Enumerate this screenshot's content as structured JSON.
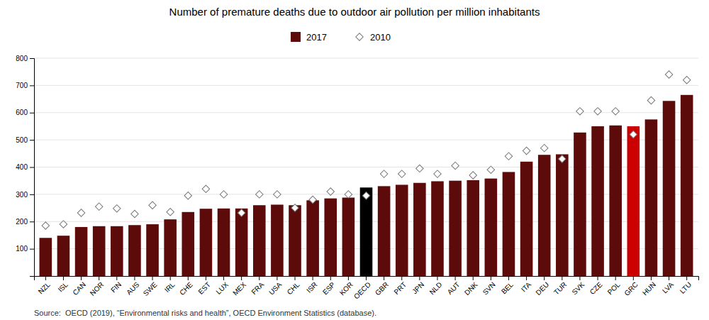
{
  "chart_data": {
    "type": "bar",
    "title": "Number of premature deaths due to outdoor air pollution per million inhabitants",
    "categories": [
      "NZL",
      "ISL",
      "CAN",
      "NOR",
      "FIN",
      "AUS",
      "SWE",
      "IRL",
      "CHE",
      "EST",
      "LUX",
      "MEX",
      "FRA",
      "USA",
      "CHL",
      "ISR",
      "ESP",
      "KOR",
      "OECD",
      "GBR",
      "PRT",
      "JPN",
      "NLD",
      "AUT",
      "DNK",
      "SVN",
      "BEL",
      "ITA",
      "DEU",
      "TUR",
      "SVK",
      "CZE",
      "POL",
      "GRC",
      "HUN",
      "LVA",
      "LTU"
    ],
    "series": [
      {
        "name": "2017",
        "type": "bar",
        "colors": [
          "#5C0A0A",
          "#5C0A0A",
          "#5C0A0A",
          "#5C0A0A",
          "#5C0A0A",
          "#5C0A0A",
          "#5C0A0A",
          "#5C0A0A",
          "#5C0A0A",
          "#5C0A0A",
          "#5C0A0A",
          "#5C0A0A",
          "#5C0A0A",
          "#5C0A0A",
          "#5C0A0A",
          "#5C0A0A",
          "#5C0A0A",
          "#5C0A0A",
          "#000000",
          "#5C0A0A",
          "#5C0A0A",
          "#5C0A0A",
          "#5C0A0A",
          "#5C0A0A",
          "#5C0A0A",
          "#5C0A0A",
          "#5C0A0A",
          "#5C0A0A",
          "#5C0A0A",
          "#5C0A0A",
          "#5C0A0A",
          "#5C0A0A",
          "#5C0A0A",
          "#CC0000",
          "#5C0A0A",
          "#5C0A0A",
          "#5C0A0A"
        ],
        "values": [
          140,
          148,
          180,
          183,
          183,
          187,
          190,
          208,
          235,
          247,
          248,
          248,
          260,
          262,
          260,
          278,
          285,
          288,
          325,
          330,
          335,
          342,
          348,
          350,
          352,
          358,
          382,
          420,
          445,
          447,
          527,
          550,
          553,
          550,
          575,
          643,
          665
        ]
      },
      {
        "name": "2010",
        "type": "scatter",
        "marker": "diamond",
        "color": "#FFFFFF",
        "values": [
          185,
          190,
          232,
          255,
          248,
          228,
          260,
          235,
          295,
          320,
          300,
          232,
          300,
          300,
          250,
          280,
          310,
          300,
          295,
          375,
          375,
          395,
          375,
          405,
          370,
          390,
          440,
          460,
          470,
          430,
          605,
          605,
          605,
          520,
          645,
          740,
          720
        ]
      }
    ],
    "ylim": [
      0,
      800
    ],
    "yticks": [
      100,
      200,
      300,
      400,
      500,
      600,
      700,
      800
    ],
    "grid": true,
    "legend": "top",
    "annotations": [
      "Source:  OECD (2019), “Environmental risks and health”, OECD Environment Statistics (database)."
    ]
  }
}
